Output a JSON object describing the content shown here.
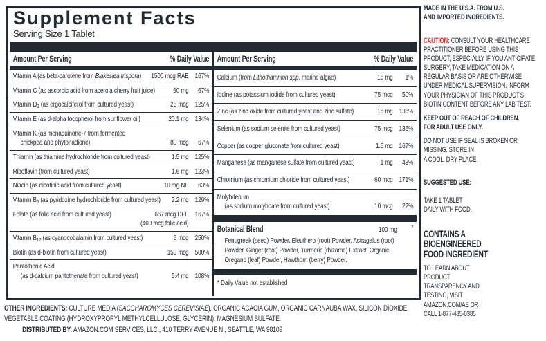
{
  "panel": {
    "title": "Supplement Facts",
    "serving_size": "Serving Size 1 Tablet",
    "col_header_amount": "Amount Per Serving",
    "col_header_dv": "% Daily Value",
    "left_rows": [
      {
        "lines": [
          {
            "name": [
              {
                "t": "Vitamin A (as beta-carotene from "
              },
              {
                "t": "Blakeslea trispora",
                "s": "i"
              },
              {
                "t": ")"
              }
            ],
            "amount": "1500 mcg RAE",
            "dv": "167%"
          }
        ]
      },
      {
        "lines": [
          {
            "name": [
              {
                "t": "Vitamin C (as ascorbic acid from acerola cherry fruit juice)"
              }
            ],
            "amount": "60 mg",
            "dv": "67%"
          }
        ]
      },
      {
        "lines": [
          {
            "name": [
              {
                "t": "Vitamin D"
              },
              {
                "t": "2",
                "s": "sub"
              },
              {
                "t": " (as ergocalciferol from cultured yeast)"
              }
            ],
            "amount": "25 mcg",
            "dv": "125%"
          }
        ]
      },
      {
        "lines": [
          {
            "name": [
              {
                "t": "Vitamin E (as d-alpha tocopherol from sunflower oil)"
              }
            ],
            "amount": "20.1 mg",
            "dv": "134%"
          }
        ]
      },
      {
        "lines": [
          {
            "name": [
              {
                "t": "Vitamin K (as menaquinone-7 from fermented"
              }
            ]
          },
          {
            "name": [
              {
                "t": "chickpea and phytonadione)"
              }
            ],
            "indent": true,
            "amount": "80 mcg",
            "dv": "67%"
          }
        ]
      },
      {
        "lines": [
          {
            "name": [
              {
                "t": "Thiamin (as thiamine hydrochloride from cultured yeast)"
              }
            ],
            "amount": "1.5 mg",
            "dv": "125%"
          }
        ]
      },
      {
        "lines": [
          {
            "name": [
              {
                "t": "Riboflavin (from cultured yeast)"
              }
            ],
            "amount": "1.6 mg",
            "dv": "123%"
          }
        ]
      },
      {
        "lines": [
          {
            "name": [
              {
                "t": "Niacin (as nicotinic acid from cultured yeast)"
              }
            ],
            "amount": "10 mg NE",
            "dv": "63%"
          }
        ]
      },
      {
        "lines": [
          {
            "name": [
              {
                "t": "Vitamin B"
              },
              {
                "t": "6",
                "s": "sub"
              },
              {
                "t": " (as pyridoxine hydrochloride from cultured yeast)"
              }
            ],
            "amount": "2.2 mg",
            "dv": "129%"
          }
        ]
      },
      {
        "lines": [
          {
            "name": [
              {
                "t": "Folate (as folic acid from cultured yeast)"
              }
            ],
            "amount": "667 mcg DFE",
            "dv": "167%"
          },
          {
            "name": [],
            "amount": "(400 mcg folic acid)",
            "dv": ""
          }
        ]
      },
      {
        "lines": [
          {
            "name": [
              {
                "t": "Vitamin B"
              },
              {
                "t": "12",
                "s": "sub"
              },
              {
                "t": " (as cyanocobalamin from cultured yeast)"
              }
            ],
            "amount": "6 mcg",
            "dv": "250%"
          }
        ]
      },
      {
        "lines": [
          {
            "name": [
              {
                "t": "Biotin (as d-biotin from cultured yeast)"
              }
            ],
            "amount": "150 mcg",
            "dv": "500%"
          }
        ]
      },
      {
        "lines": [
          {
            "name": [
              {
                "t": "Pantothenic Acid"
              }
            ]
          },
          {
            "name": [
              {
                "t": "(as d-calcium pantothenate from cultured yeast)"
              }
            ],
            "indent": true,
            "amount": "5.4 mg",
            "dv": "108%"
          }
        ]
      }
    ],
    "right_rows": [
      {
        "lines": [
          {
            "name": [
              {
                "t": "Calcium (from "
              },
              {
                "t": "Lithothamnion spp.",
                "s": "i"
              },
              {
                "t": " marine algae)"
              }
            ],
            "amount": "15 mg",
            "dv": "1%"
          }
        ]
      },
      {
        "lines": [
          {
            "name": [
              {
                "t": "Iodine (as potassium iodide from cultured yeast)"
              }
            ],
            "amount": "75 mcg",
            "dv": "50%"
          }
        ]
      },
      {
        "lines": [
          {
            "name": [
              {
                "t": "Zinc (as zinc oxide from cultured yeast and zinc sulfate)"
              }
            ],
            "amount": "15 mg",
            "dv": "136%"
          }
        ]
      },
      {
        "lines": [
          {
            "name": [
              {
                "t": "Selenium (as sodium selenite from cultured yeast)"
              }
            ],
            "amount": "75 mcg",
            "dv": "136%"
          }
        ]
      },
      {
        "lines": [
          {
            "name": [
              {
                "t": "Copper (as copper gluconate from cultured yeast)"
              }
            ],
            "amount": "1.5 mg",
            "dv": "167%"
          }
        ]
      },
      {
        "lines": [
          {
            "name": [
              {
                "t": "Manganese (as manganese sulfate from cultured yeast)"
              }
            ],
            "amount": "1 mg",
            "dv": "43%"
          }
        ]
      },
      {
        "lines": [
          {
            "name": [
              {
                "t": "Chromium (as chromium chloride from cultured yeast)"
              }
            ],
            "amount": "60 mcg",
            "dv": "171%"
          }
        ]
      },
      {
        "lines": [
          {
            "name": [
              {
                "t": "Molybdenum"
              }
            ]
          },
          {
            "name": [
              {
                "t": "(as sodium molybdate from cultured yeast)"
              }
            ],
            "indent": true,
            "amount": "10 mcg",
            "dv": "22%"
          }
        ]
      }
    ],
    "botanical": {
      "name": "Botanical Blend",
      "amount": "100 mg",
      "dv": "*",
      "ingredients": "Fenugreek (seed) Powder, Eleuthero (root) Powder, Astragalus (root) Powder, Ginger (root) Powder, Turmeric (rhizome) Extract, Organic Oregano (leaf) Powder, Hawthorn (berry) Powder."
    },
    "footnote": "* Daily Value not established"
  },
  "bottom": {
    "other_ingredients_label": "OTHER INGREDIENTS:",
    "other_ingredients_pre": " CULTURE MEDIA (",
    "other_ingredients_italic": "SACCHAROMYCES CEREVISIAE",
    "other_ingredients_post": "), ORGANIC ACACIA GUM, ORGANIC CARNAUBA WAX, SILICON DIOXIDE, VEGETABLE COATING (HYDROXYPROPYL METHYLCELLULOSE, GLYCERIN), MAGNESIUM SULFATE.",
    "distributed_label": "DISTRIBUTED BY:",
    "distributed_text": " AMAZON.COM SERVICES, LLC., 410 TERRY AVENUE N., SEATTLE, WA 98109"
  },
  "sidebar": {
    "made_in": "MADE IN THE U.S.A. FROM U.S.\nAND IMPORTED INGREDIENTS.",
    "caution_label": "CAUTION:",
    "caution_text": " CONSULT YOUR HEALTHCARE\nPRACTITIONER BEFORE USING THIS\nPRODUCT, ESPECIALLY IF YOU ANTICIPATE\nSURGERY, TAKE MEDICATION ON A\nREGULAR BASIS OR ARE OTHERWISE\nUNDER MEDICAL SUPERVISION. INFORM\nYOUR PHYSICIAN OF THIS PRODUCT'S\nBIOTIN CONTENT BEFORE ANY LAB TEST.",
    "keep_out": "KEEP OUT OF REACH OF CHILDREN.\nFOR ADULT USE ONLY.",
    "seal": "DO NOT USE IF SEAL IS BROKEN OR\nMISSING. STORE IN\nA COOL, DRY PLACE.",
    "suggested_use_label": "SUGGESTED USE:",
    "suggested_use_text": "TAKE 1 TABLET\nDAILY WITH FOOD.",
    "bioengineered": "CONTAINS A\nBIOENGINEERED\nFOOD INGREDIENT",
    "transparency": "TO LEARN ABOUT\nPRODUCT\nTRANSPARENCY AND\nTESTING, VISIT\nAMAZON.COM/AE OR\nCALL 1-877-485-0385"
  },
  "colors": {
    "ink": "#242a31",
    "caution_red": "#e0312a"
  }
}
